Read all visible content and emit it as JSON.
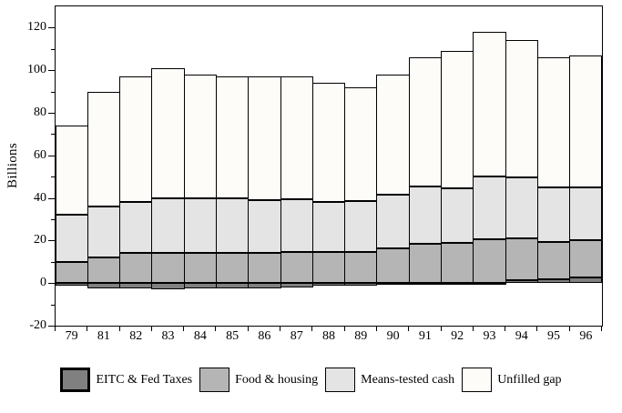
{
  "chart_data": {
    "type": "bar",
    "stacked": true,
    "title": "",
    "xlabel": "",
    "ylabel": "Billions",
    "ylim": [
      -20,
      130
    ],
    "yticks_major": [
      -20,
      0,
      20,
      40,
      60,
      80,
      100,
      120
    ],
    "yticks_minor": [
      -10,
      10,
      30,
      50,
      70,
      90,
      110
    ],
    "grid": false,
    "legend_position": "bottom",
    "background": "#ffffff",
    "bar_outline": "#000000",
    "categories": [
      "79",
      "81",
      "82",
      "83",
      "84",
      "85",
      "86",
      "87",
      "88",
      "89",
      "90",
      "91",
      "92",
      "93",
      "94",
      "95",
      "96"
    ],
    "series": [
      {
        "name": "EITC & Fed Taxes",
        "color": "#808080",
        "values": [
          -1,
          -2.5,
          -2.5,
          -3,
          -2.5,
          -2.5,
          -2.5,
          -2,
          -1,
          -1,
          -0.5,
          -0.5,
          -0.5,
          -0.5,
          1.5,
          2,
          2.5
        ]
      },
      {
        "name": "Food & housing",
        "color": "#b5b5b5",
        "values": [
          10,
          12,
          14,
          14,
          14,
          14,
          14,
          14.5,
          14.5,
          14.5,
          16.5,
          18.5,
          19,
          20.5,
          19.5,
          17.5,
          17.5
        ]
      },
      {
        "name": "Means-tested cash",
        "color": "#e4e4e4",
        "values": [
          22,
          24,
          24,
          26,
          26,
          26,
          25,
          25,
          23.5,
          24,
          25,
          27,
          25.5,
          29.5,
          28.5,
          25.5,
          25
        ]
      },
      {
        "name": "Unfilled gap",
        "color": "#fdfcf8",
        "values": [
          42,
          54,
          59,
          61,
          58,
          57,
          58,
          57.5,
          56,
          53.5,
          56.5,
          60.5,
          64.5,
          68,
          64.5,
          61,
          62
        ]
      }
    ],
    "bar_totals": [
      74,
      90,
      97,
      101,
      98,
      97,
      97,
      97,
      94,
      92,
      98,
      106,
      109,
      118,
      114,
      106,
      107
    ]
  }
}
